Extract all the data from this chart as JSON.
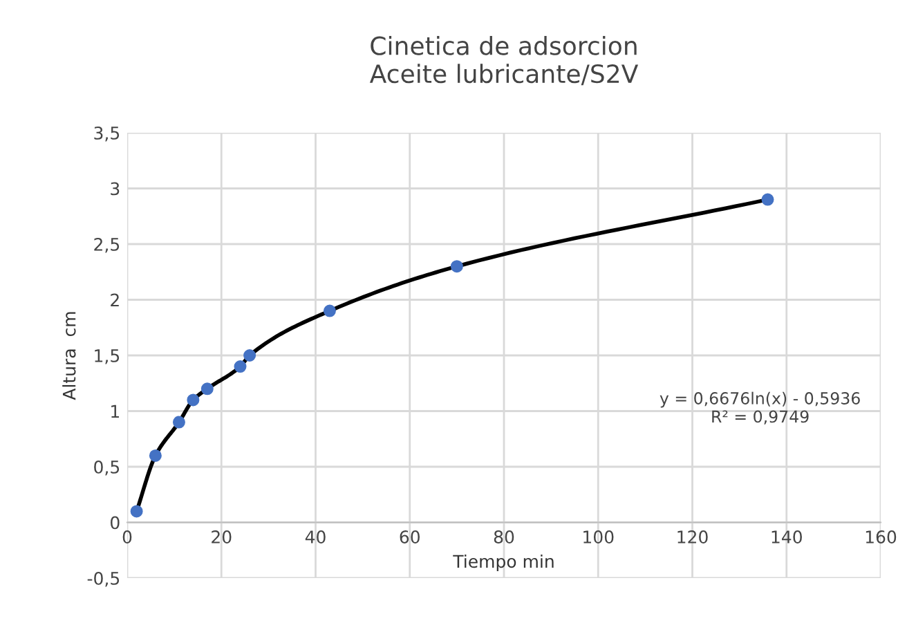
{
  "chart_data": {
    "type": "scatter",
    "title": "Cinetica de adsorcion\nAceite lubricante/S2V",
    "xlabel": "Tiempo min",
    "ylabel": "Altura  cm",
    "series": [
      {
        "type": "line",
        "color": "#000000",
        "x": [
          2,
          6,
          11,
          14,
          17,
          24,
          26,
          43,
          70,
          136
        ],
        "values": [
          0.1,
          0.6,
          0.9,
          1.1,
          1.2,
          1.4,
          1.5,
          1.9,
          2.3,
          2.9
        ]
      },
      {
        "marker": "circle",
        "color": "#4472c4",
        "x": [
          2,
          6,
          11,
          14,
          17,
          24,
          26,
          43,
          70,
          136
        ],
        "values": [
          0.1,
          0.6,
          0.9,
          1.1,
          1.2,
          1.4,
          1.5,
          1.9,
          2.3,
          2.9
        ]
      }
    ],
    "xlim": [
      0,
      160
    ],
    "xticks": [
      0,
      20,
      40,
      60,
      80,
      100,
      120,
      140,
      160
    ],
    "ylim": [
      -0.5,
      3.5
    ],
    "yticks": [
      {
        "value": -0.5,
        "label": "-0,5"
      },
      0,
      {
        "value": 0.5,
        "label": "0,5"
      },
      1,
      {
        "value": 1.5,
        "label": "1,5"
      },
      2,
      {
        "value": 2.5,
        "label": "2,5"
      },
      3,
      {
        "value": 3.5,
        "label": "3,5"
      }
    ],
    "grid": true,
    "annotations": [
      "y = 0,6676ln(x) - 0,5936\nR² = 0,9749"
    ]
  }
}
